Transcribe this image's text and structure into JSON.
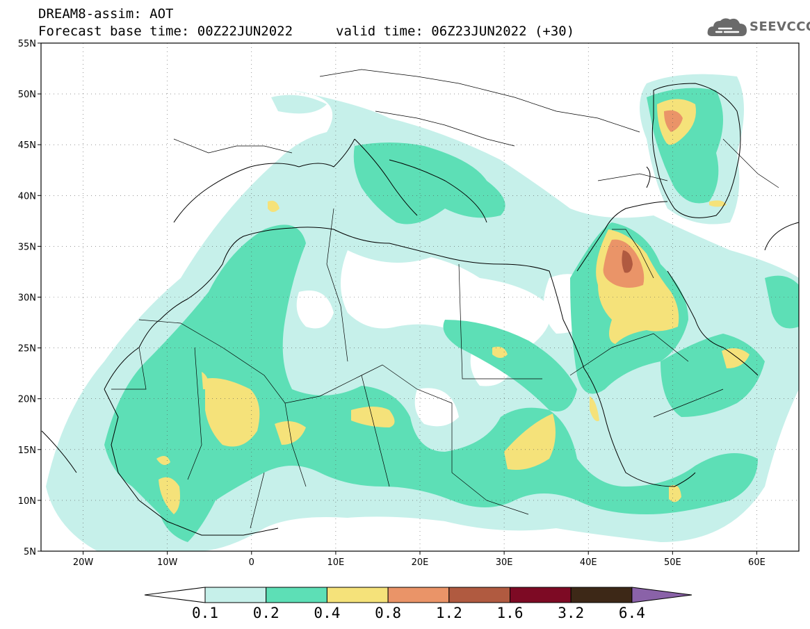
{
  "header": {
    "line1": "DREAM8-assim: AOT",
    "base_time": "Forecast base time: 00Z22JUN2022",
    "valid_time": "valid time: 06Z23JUN2022 (+30)"
  },
  "logo": {
    "icon": "cloud-icon",
    "text": "SEEVCCC"
  },
  "map": {
    "lon_range": [
      -25,
      65
    ],
    "lat_range": [
      5,
      55
    ],
    "lat_ticks": [
      "5N",
      "10N",
      "15N",
      "20N",
      "25N",
      "30N",
      "35N",
      "40N",
      "45N",
      "50N",
      "55N"
    ],
    "lon_ticks": [
      "20W",
      "10W",
      "0",
      "10E",
      "20E",
      "30E",
      "40E",
      "50E",
      "60E"
    ],
    "grid": "dotted"
  },
  "colorbar": {
    "colors": [
      "#c6f0ea",
      "#5ddfb6",
      "#f5e27a",
      "#ea9468",
      "#b05a40",
      "#7d0a24",
      "#3d2817",
      "#8a62a8"
    ],
    "under_color": "#ffffff",
    "labels": [
      "0.1",
      "0.2",
      "0.4",
      "0.8",
      "1.2",
      "1.6",
      "3.2",
      "6.4"
    ]
  }
}
